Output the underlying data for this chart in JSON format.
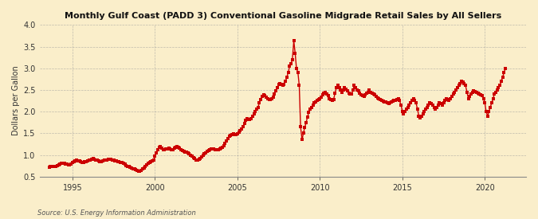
{
  "title": "Monthly Gulf Coast (PADD 3) Conventional Gasoline Midgrade Retail Sales by All Sellers",
  "ylabel": "Dollars per Gallon",
  "source": "Source: U.S. Energy Information Administration",
  "background_color": "#faeeca",
  "line_color": "#cc0000",
  "ylim": [
    0.5,
    4.0
  ],
  "yticks": [
    0.5,
    1.0,
    1.5,
    2.0,
    2.5,
    3.0,
    3.5,
    4.0
  ],
  "xlim_start": 1993.0,
  "xlim_end": 2022.5,
  "xticks": [
    1995,
    2000,
    2005,
    2010,
    2015,
    2020
  ],
  "data": [
    [
      1993.58,
      0.714
    ],
    [
      1993.67,
      0.725
    ],
    [
      1993.75,
      0.728
    ],
    [
      1993.83,
      0.73
    ],
    [
      1993.92,
      0.732
    ],
    [
      1994.0,
      0.74
    ],
    [
      1994.08,
      0.758
    ],
    [
      1994.17,
      0.779
    ],
    [
      1994.25,
      0.792
    ],
    [
      1994.33,
      0.801
    ],
    [
      1994.42,
      0.808
    ],
    [
      1994.5,
      0.8
    ],
    [
      1994.58,
      0.79
    ],
    [
      1994.67,
      0.782
    ],
    [
      1994.75,
      0.773
    ],
    [
      1994.83,
      0.778
    ],
    [
      1994.92,
      0.796
    ],
    [
      1995.0,
      0.818
    ],
    [
      1995.08,
      0.843
    ],
    [
      1995.17,
      0.867
    ],
    [
      1995.25,
      0.878
    ],
    [
      1995.33,
      0.871
    ],
    [
      1995.42,
      0.857
    ],
    [
      1995.5,
      0.843
    ],
    [
      1995.58,
      0.832
    ],
    [
      1995.67,
      0.831
    ],
    [
      1995.75,
      0.841
    ],
    [
      1995.83,
      0.851
    ],
    [
      1995.92,
      0.86
    ],
    [
      1996.0,
      0.872
    ],
    [
      1996.08,
      0.883
    ],
    [
      1996.17,
      0.904
    ],
    [
      1996.25,
      0.924
    ],
    [
      1996.33,
      0.901
    ],
    [
      1996.42,
      0.882
    ],
    [
      1996.5,
      0.873
    ],
    [
      1996.58,
      0.861
    ],
    [
      1996.67,
      0.851
    ],
    [
      1996.75,
      0.851
    ],
    [
      1996.83,
      0.862
    ],
    [
      1996.92,
      0.872
    ],
    [
      1997.0,
      0.881
    ],
    [
      1997.08,
      0.889
    ],
    [
      1997.17,
      0.9
    ],
    [
      1997.25,
      0.908
    ],
    [
      1997.33,
      0.9
    ],
    [
      1997.42,
      0.889
    ],
    [
      1997.5,
      0.877
    ],
    [
      1997.58,
      0.866
    ],
    [
      1997.67,
      0.856
    ],
    [
      1997.75,
      0.848
    ],
    [
      1997.83,
      0.84
    ],
    [
      1997.92,
      0.83
    ],
    [
      1998.0,
      0.819
    ],
    [
      1998.08,
      0.8
    ],
    [
      1998.17,
      0.78
    ],
    [
      1998.25,
      0.759
    ],
    [
      1998.33,
      0.74
    ],
    [
      1998.42,
      0.727
    ],
    [
      1998.5,
      0.71
    ],
    [
      1998.58,
      0.698
    ],
    [
      1998.67,
      0.682
    ],
    [
      1998.75,
      0.67
    ],
    [
      1998.83,
      0.657
    ],
    [
      1998.92,
      0.641
    ],
    [
      1999.0,
      0.63
    ],
    [
      1999.08,
      0.63
    ],
    [
      1999.17,
      0.641
    ],
    [
      1999.25,
      0.671
    ],
    [
      1999.33,
      0.7
    ],
    [
      1999.42,
      0.74
    ],
    [
      1999.5,
      0.774
    ],
    [
      1999.58,
      0.8
    ],
    [
      1999.67,
      0.822
    ],
    [
      1999.75,
      0.84
    ],
    [
      1999.83,
      0.86
    ],
    [
      1999.92,
      0.88
    ],
    [
      2000.0,
      0.968
    ],
    [
      2000.08,
      1.051
    ],
    [
      2000.17,
      1.121
    ],
    [
      2000.25,
      1.178
    ],
    [
      2000.33,
      1.2
    ],
    [
      2000.42,
      1.148
    ],
    [
      2000.5,
      1.128
    ],
    [
      2000.58,
      1.118
    ],
    [
      2000.67,
      1.131
    ],
    [
      2000.75,
      1.142
    ],
    [
      2000.83,
      1.153
    ],
    [
      2000.92,
      1.138
    ],
    [
      2001.0,
      1.128
    ],
    [
      2001.08,
      1.118
    ],
    [
      2001.17,
      1.148
    ],
    [
      2001.25,
      1.168
    ],
    [
      2001.33,
      1.198
    ],
    [
      2001.42,
      1.181
    ],
    [
      2001.5,
      1.148
    ],
    [
      2001.58,
      1.118
    ],
    [
      2001.67,
      1.101
    ],
    [
      2001.75,
      1.081
    ],
    [
      2001.83,
      1.071
    ],
    [
      2001.92,
      1.059
    ],
    [
      2002.0,
      1.05
    ],
    [
      2002.08,
      1.031
    ],
    [
      2002.17,
      1.0
    ],
    [
      2002.25,
      0.972
    ],
    [
      2002.33,
      0.941
    ],
    [
      2002.42,
      0.911
    ],
    [
      2002.5,
      0.881
    ],
    [
      2002.58,
      0.88
    ],
    [
      2002.67,
      0.901
    ],
    [
      2002.75,
      0.921
    ],
    [
      2002.83,
      0.95
    ],
    [
      2002.92,
      0.99
    ],
    [
      2003.0,
      1.021
    ],
    [
      2003.08,
      1.051
    ],
    [
      2003.17,
      1.081
    ],
    [
      2003.25,
      1.101
    ],
    [
      2003.33,
      1.121
    ],
    [
      2003.42,
      1.131
    ],
    [
      2003.5,
      1.141
    ],
    [
      2003.58,
      1.131
    ],
    [
      2003.67,
      1.121
    ],
    [
      2003.75,
      1.111
    ],
    [
      2003.83,
      1.12
    ],
    [
      2003.92,
      1.14
    ],
    [
      2004.0,
      1.158
    ],
    [
      2004.08,
      1.181
    ],
    [
      2004.17,
      1.221
    ],
    [
      2004.25,
      1.271
    ],
    [
      2004.33,
      1.32
    ],
    [
      2004.42,
      1.381
    ],
    [
      2004.5,
      1.431
    ],
    [
      2004.58,
      1.451
    ],
    [
      2004.67,
      1.471
    ],
    [
      2004.75,
      1.481
    ],
    [
      2004.83,
      1.471
    ],
    [
      2004.92,
      1.461
    ],
    [
      2005.0,
      1.481
    ],
    [
      2005.08,
      1.521
    ],
    [
      2005.17,
      1.561
    ],
    [
      2005.25,
      1.601
    ],
    [
      2005.33,
      1.651
    ],
    [
      2005.42,
      1.721
    ],
    [
      2005.5,
      1.8
    ],
    [
      2005.58,
      1.831
    ],
    [
      2005.67,
      1.82
    ],
    [
      2005.75,
      1.82
    ],
    [
      2005.83,
      1.841
    ],
    [
      2005.92,
      1.9
    ],
    [
      2006.0,
      1.951
    ],
    [
      2006.08,
      2.001
    ],
    [
      2006.17,
      2.051
    ],
    [
      2006.25,
      2.101
    ],
    [
      2006.33,
      2.201
    ],
    [
      2006.42,
      2.281
    ],
    [
      2006.5,
      2.351
    ],
    [
      2006.58,
      2.381
    ],
    [
      2006.67,
      2.371
    ],
    [
      2006.75,
      2.331
    ],
    [
      2006.83,
      2.301
    ],
    [
      2006.92,
      2.281
    ],
    [
      2007.0,
      2.271
    ],
    [
      2007.08,
      2.301
    ],
    [
      2007.17,
      2.341
    ],
    [
      2007.25,
      2.401
    ],
    [
      2007.33,
      2.481
    ],
    [
      2007.42,
      2.551
    ],
    [
      2007.5,
      2.621
    ],
    [
      2007.58,
      2.641
    ],
    [
      2007.67,
      2.621
    ],
    [
      2007.75,
      2.601
    ],
    [
      2007.83,
      2.631
    ],
    [
      2007.92,
      2.701
    ],
    [
      2008.0,
      2.801
    ],
    [
      2008.08,
      2.901
    ],
    [
      2008.17,
      3.051
    ],
    [
      2008.25,
      3.101
    ],
    [
      2008.33,
      3.201
    ],
    [
      2008.42,
      3.631
    ],
    [
      2008.5,
      3.351
    ],
    [
      2008.58,
      3.001
    ],
    [
      2008.67,
      2.901
    ],
    [
      2008.75,
      2.601
    ],
    [
      2008.83,
      1.651
    ],
    [
      2008.92,
      1.351
    ],
    [
      2009.0,
      1.501
    ],
    [
      2009.08,
      1.631
    ],
    [
      2009.17,
      1.751
    ],
    [
      2009.25,
      1.881
    ],
    [
      2009.33,
      1.981
    ],
    [
      2009.42,
      2.051
    ],
    [
      2009.5,
      2.101
    ],
    [
      2009.58,
      2.151
    ],
    [
      2009.67,
      2.201
    ],
    [
      2009.75,
      2.221
    ],
    [
      2009.83,
      2.251
    ],
    [
      2009.92,
      2.281
    ],
    [
      2010.0,
      2.301
    ],
    [
      2010.08,
      2.331
    ],
    [
      2010.17,
      2.381
    ],
    [
      2010.25,
      2.421
    ],
    [
      2010.33,
      2.441
    ],
    [
      2010.42,
      2.401
    ],
    [
      2010.5,
      2.361
    ],
    [
      2010.58,
      2.301
    ],
    [
      2010.67,
      2.281
    ],
    [
      2010.75,
      2.251
    ],
    [
      2010.83,
      2.281
    ],
    [
      2010.92,
      2.421
    ],
    [
      2011.0,
      2.551
    ],
    [
      2011.08,
      2.601
    ],
    [
      2011.17,
      2.551
    ],
    [
      2011.25,
      2.501
    ],
    [
      2011.33,
      2.451
    ],
    [
      2011.42,
      2.501
    ],
    [
      2011.5,
      2.551
    ],
    [
      2011.58,
      2.521
    ],
    [
      2011.67,
      2.481
    ],
    [
      2011.75,
      2.421
    ],
    [
      2011.83,
      2.401
    ],
    [
      2011.92,
      2.401
    ],
    [
      2012.0,
      2.501
    ],
    [
      2012.08,
      2.601
    ],
    [
      2012.17,
      2.551
    ],
    [
      2012.25,
      2.501
    ],
    [
      2012.33,
      2.481
    ],
    [
      2012.42,
      2.421
    ],
    [
      2012.5,
      2.381
    ],
    [
      2012.58,
      2.361
    ],
    [
      2012.67,
      2.351
    ],
    [
      2012.75,
      2.381
    ],
    [
      2012.83,
      2.421
    ],
    [
      2012.92,
      2.451
    ],
    [
      2013.0,
      2.501
    ],
    [
      2013.08,
      2.451
    ],
    [
      2013.17,
      2.421
    ],
    [
      2013.25,
      2.401
    ],
    [
      2013.33,
      2.381
    ],
    [
      2013.42,
      2.351
    ],
    [
      2013.5,
      2.321
    ],
    [
      2013.58,
      2.301
    ],
    [
      2013.67,
      2.281
    ],
    [
      2013.75,
      2.251
    ],
    [
      2013.83,
      2.241
    ],
    [
      2013.92,
      2.231
    ],
    [
      2014.0,
      2.221
    ],
    [
      2014.08,
      2.201
    ],
    [
      2014.17,
      2.181
    ],
    [
      2014.25,
      2.201
    ],
    [
      2014.33,
      2.221
    ],
    [
      2014.42,
      2.241
    ],
    [
      2014.5,
      2.251
    ],
    [
      2014.58,
      2.261
    ],
    [
      2014.67,
      2.281
    ],
    [
      2014.75,
      2.301
    ],
    [
      2014.83,
      2.251
    ],
    [
      2014.92,
      2.151
    ],
    [
      2015.0,
      2.001
    ],
    [
      2015.08,
      1.951
    ],
    [
      2015.17,
      2.001
    ],
    [
      2015.25,
      2.051
    ],
    [
      2015.33,
      2.101
    ],
    [
      2015.42,
      2.151
    ],
    [
      2015.5,
      2.201
    ],
    [
      2015.58,
      2.251
    ],
    [
      2015.67,
      2.301
    ],
    [
      2015.75,
      2.261
    ],
    [
      2015.83,
      2.201
    ],
    [
      2015.92,
      2.051
    ],
    [
      2016.0,
      1.901
    ],
    [
      2016.08,
      1.851
    ],
    [
      2016.17,
      1.901
    ],
    [
      2016.25,
      1.951
    ],
    [
      2016.33,
      2.001
    ],
    [
      2016.42,
      2.051
    ],
    [
      2016.5,
      2.101
    ],
    [
      2016.58,
      2.151
    ],
    [
      2016.67,
      2.201
    ],
    [
      2016.75,
      2.181
    ],
    [
      2016.83,
      2.151
    ],
    [
      2016.92,
      2.101
    ],
    [
      2017.0,
      2.051
    ],
    [
      2017.08,
      2.101
    ],
    [
      2017.17,
      2.151
    ],
    [
      2017.25,
      2.201
    ],
    [
      2017.33,
      2.181
    ],
    [
      2017.42,
      2.151
    ],
    [
      2017.5,
      2.201
    ],
    [
      2017.58,
      2.251
    ],
    [
      2017.67,
      2.301
    ],
    [
      2017.75,
      2.281
    ],
    [
      2017.83,
      2.251
    ],
    [
      2017.92,
      2.301
    ],
    [
      2018.0,
      2.351
    ],
    [
      2018.08,
      2.401
    ],
    [
      2018.17,
      2.451
    ],
    [
      2018.25,
      2.501
    ],
    [
      2018.33,
      2.551
    ],
    [
      2018.42,
      2.601
    ],
    [
      2018.5,
      2.651
    ],
    [
      2018.58,
      2.701
    ],
    [
      2018.67,
      2.681
    ],
    [
      2018.75,
      2.651
    ],
    [
      2018.83,
      2.601
    ],
    [
      2018.92,
      2.451
    ],
    [
      2019.0,
      2.301
    ],
    [
      2019.08,
      2.351
    ],
    [
      2019.17,
      2.401
    ],
    [
      2019.25,
      2.451
    ],
    [
      2019.33,
      2.481
    ],
    [
      2019.42,
      2.461
    ],
    [
      2019.5,
      2.441
    ],
    [
      2019.58,
      2.421
    ],
    [
      2019.67,
      2.401
    ],
    [
      2019.75,
      2.381
    ],
    [
      2019.83,
      2.361
    ],
    [
      2019.92,
      2.301
    ],
    [
      2020.0,
      2.201
    ],
    [
      2020.08,
      2.001
    ],
    [
      2020.17,
      1.901
    ],
    [
      2020.25,
      2.001
    ],
    [
      2020.33,
      2.101
    ],
    [
      2020.42,
      2.201
    ],
    [
      2020.5,
      2.301
    ],
    [
      2020.58,
      2.401
    ],
    [
      2020.67,
      2.451
    ],
    [
      2020.75,
      2.501
    ],
    [
      2020.83,
      2.551
    ],
    [
      2020.92,
      2.601
    ],
    [
      2021.0,
      2.701
    ],
    [
      2021.08,
      2.801
    ],
    [
      2021.17,
      2.901
    ],
    [
      2021.25,
      3.001
    ]
  ]
}
